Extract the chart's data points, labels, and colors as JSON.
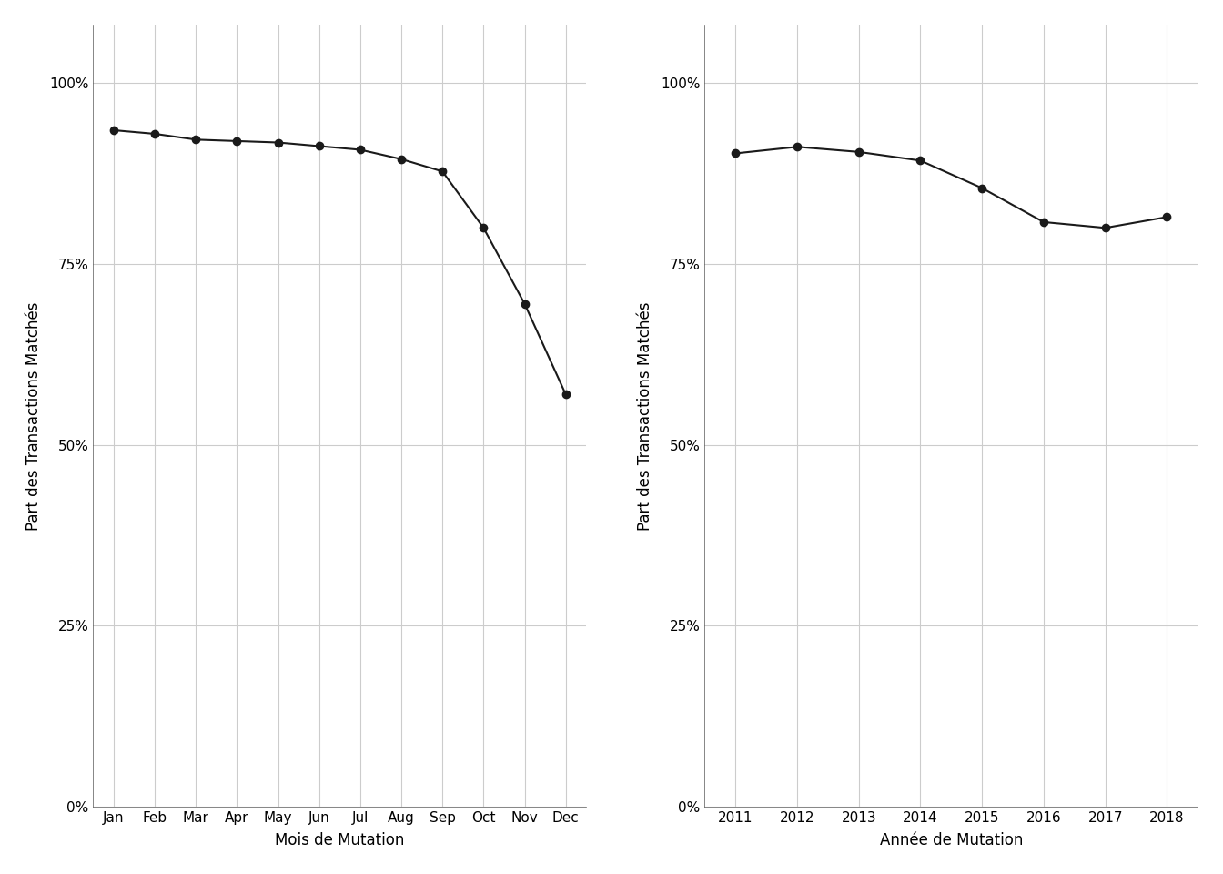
{
  "month_labels": [
    "Jan",
    "Feb",
    "Mar",
    "Apr",
    "May",
    "Jun",
    "Jul",
    "Aug",
    "Sep",
    "Oct",
    "Nov",
    "Dec"
  ],
  "month_values": [
    0.935,
    0.93,
    0.922,
    0.92,
    0.918,
    0.913,
    0.908,
    0.895,
    0.878,
    0.8,
    0.695,
    0.57
  ],
  "month_xlabel": "Mois de Mutation",
  "month_ylabel": "Part des Transactions Matchés",
  "year_labels": [
    "2011",
    "2012",
    "2013",
    "2014",
    "2015",
    "2016",
    "2017",
    "2018"
  ],
  "year_values": [
    0.903,
    0.912,
    0.905,
    0.893,
    0.855,
    0.808,
    0.8,
    0.815
  ],
  "year_xlabel": "Année de Mutation",
  "year_ylabel": "Part des Transactions Matchés",
  "line_color": "#1a1a1a",
  "marker": "o",
  "marker_size": 6,
  "line_width": 1.5,
  "panel_background": "#ffffff",
  "fig_background": "#ffffff",
  "grid_color": "#cccccc",
  "grid_linewidth": 0.8,
  "ylim": [
    0.0,
    1.08
  ],
  "yticks": [
    0.0,
    0.25,
    0.5,
    0.75,
    1.0
  ],
  "tick_fontsize": 11,
  "label_fontsize": 12,
  "spine_color": "#555555"
}
